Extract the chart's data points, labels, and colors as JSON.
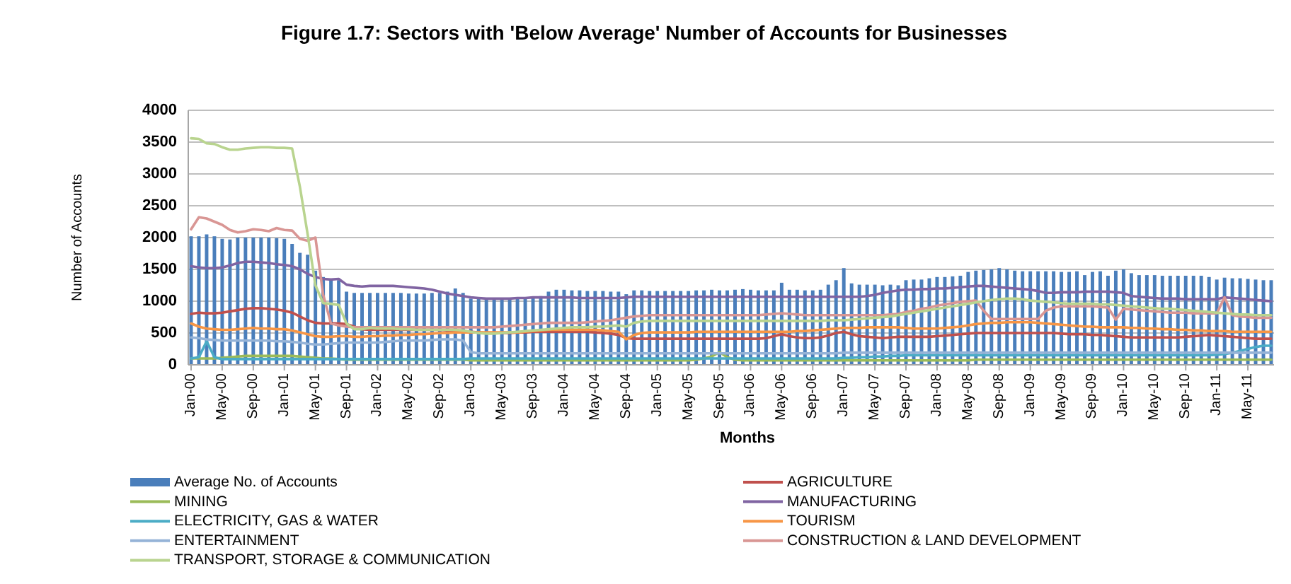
{
  "chart_data": {
    "type": "line",
    "title": "Figure 1.7: Sectors with 'Below Average' Number of Accounts for Businesses",
    "xlabel": "Months",
    "ylabel": "Number of Accounts",
    "categories": [
      "Jan-00",
      null,
      null,
      null,
      "May-00",
      null,
      null,
      null,
      "Sep-00",
      null,
      null,
      null,
      "Jan-01",
      null,
      null,
      null,
      "May-01",
      null,
      null,
      null,
      "Sep-01",
      null,
      null,
      null,
      "Jan-02",
      null,
      null,
      null,
      "May-02",
      null,
      null,
      null,
      "Sep-02",
      null,
      null,
      null,
      "Jan-03",
      null,
      null,
      null,
      "May-03",
      null,
      null,
      null,
      "Sep-03",
      null,
      null,
      null,
      "Jan-04",
      null,
      null,
      null,
      "May-04",
      null,
      null,
      null,
      "Sep-04",
      null,
      null,
      null,
      "Jan-05",
      null,
      null,
      null,
      "May-05",
      null,
      null,
      null,
      "Sep-05",
      null,
      null,
      null,
      "Jan-06",
      null,
      null,
      null,
      "May-06",
      null,
      null,
      null,
      "Sep-06",
      null,
      null,
      null,
      "Jan-07",
      null,
      null,
      null,
      "May-07",
      null,
      null,
      null,
      "Sep-07",
      null,
      null,
      null,
      "Jan-08",
      null,
      null,
      null,
      "May-08",
      null,
      null,
      null,
      "Sep-08",
      null,
      null,
      null,
      "Jan-09",
      null,
      null,
      null,
      "May-09",
      null,
      null,
      null,
      "Sep-09",
      null,
      null,
      null,
      "Jan-10",
      null,
      null,
      null,
      "May-10",
      null,
      null,
      null,
      "Sep-10",
      null,
      null,
      null,
      "Jan-11",
      null,
      null,
      null,
      "May-11",
      null,
      null,
      null
    ],
    "ylim": [
      0,
      4000
    ],
    "yticks": [
      0,
      500,
      1000,
      1500,
      2000,
      2500,
      3000,
      3500,
      4000
    ],
    "grid": "y",
    "legend": "bottom",
    "series": [
      {
        "name": "Average No. of Accounts",
        "type": "bar",
        "color": "#4a7ebb",
        "values": [
          2020,
          2020,
          2050,
          2020,
          1980,
          1970,
          2000,
          2000,
          2000,
          2000,
          2000,
          1990,
          1980,
          1900,
          1760,
          1730,
          1480,
          1380,
          1350,
          1330,
          1150,
          1130,
          1130,
          1130,
          1130,
          1130,
          1130,
          1130,
          1120,
          1120,
          1120,
          1130,
          1130,
          1150,
          1200,
          1130,
          1040,
          1040,
          1040,
          1040,
          1040,
          1040,
          1040,
          1040,
          1060,
          1080,
          1150,
          1180,
          1180,
          1170,
          1170,
          1160,
          1160,
          1160,
          1150,
          1150,
          1110,
          1170,
          1170,
          1160,
          1160,
          1160,
          1160,
          1160,
          1160,
          1170,
          1170,
          1180,
          1170,
          1170,
          1180,
          1190,
          1180,
          1170,
          1170,
          1170,
          1290,
          1180,
          1180,
          1170,
          1170,
          1180,
          1260,
          1330,
          1520,
          1280,
          1260,
          1260,
          1260,
          1250,
          1260,
          1250,
          1330,
          1340,
          1340,
          1360,
          1380,
          1380,
          1390,
          1400,
          1460,
          1480,
          1490,
          1500,
          1520,
          1500,
          1480,
          1470,
          1470,
          1470,
          1470,
          1470,
          1460,
          1460,
          1470,
          1410,
          1460,
          1470,
          1400,
          1480,
          1500,
          1440,
          1410,
          1410,
          1410,
          1400,
          1400,
          1400,
          1400,
          1400,
          1400,
          1380,
          1340,
          1370,
          1360,
          1360,
          1350,
          1340,
          1330,
          1330
        ]
      },
      {
        "name": "AGRICULTURE",
        "color": "#c0504d",
        "values": [
          800,
          820,
          810,
          810,
          820,
          840,
          860,
          880,
          890,
          890,
          880,
          870,
          850,
          820,
          760,
          700,
          660,
          650,
          650,
          650,
          640,
          600,
          560,
          550,
          550,
          550,
          550,
          550,
          550,
          550,
          550,
          550,
          550,
          540,
          540,
          530,
          520,
          510,
          500,
          500,
          500,
          500,
          510,
          510,
          520,
          520,
          520,
          520,
          520,
          520,
          520,
          520,
          510,
          500,
          490,
          470,
          420,
          410,
          410,
          410,
          410,
          410,
          410,
          410,
          410,
          410,
          410,
          410,
          410,
          410,
          410,
          410,
          410,
          410,
          420,
          450,
          480,
          450,
          430,
          420,
          420,
          430,
          460,
          500,
          520,
          480,
          450,
          440,
          430,
          420,
          430,
          440,
          440,
          440,
          440,
          440,
          450,
          460,
          470,
          480,
          490,
          500,
          500,
          500,
          500,
          500,
          500,
          500,
          500,
          500,
          500,
          500,
          490,
          480,
          480,
          480,
          470,
          470,
          460,
          450,
          440,
          430,
          430,
          430,
          430,
          430,
          430,
          430,
          440,
          450,
          460,
          470,
          460,
          450,
          440,
          430,
          420,
          410,
          410,
          410
        ]
      },
      {
        "name": "MINING",
        "color": "#9bbb59",
        "values": [
          100,
          100,
          100,
          100,
          110,
          120,
          130,
          140,
          140,
          140,
          140,
          140,
          140,
          140,
          130,
          120,
          110,
          100,
          100,
          90,
          80,
          80,
          80,
          80,
          80,
          80,
          80,
          80,
          80,
          80,
          80,
          80,
          80,
          80,
          80,
          80,
          70,
          70,
          70,
          70,
          70,
          70,
          70,
          70,
          70,
          70,
          70,
          70,
          70,
          70,
          70,
          70,
          70,
          70,
          70,
          70,
          70,
          70,
          70,
          70,
          70,
          70,
          70,
          70,
          70,
          80,
          100,
          130,
          200,
          120,
          80,
          70,
          70,
          70,
          70,
          70,
          70,
          70,
          70,
          70,
          70,
          70,
          70,
          70,
          70,
          70,
          70,
          70,
          70,
          70,
          70,
          70,
          70,
          70,
          70,
          70,
          70,
          70,
          70,
          70,
          70,
          80,
          80,
          80,
          80,
          80,
          80,
          80,
          80,
          80,
          80,
          80,
          80,
          80,
          80,
          80,
          80,
          80,
          80,
          80,
          80,
          80,
          80,
          80,
          80,
          80,
          80,
          80,
          80,
          80,
          80,
          80,
          80,
          80,
          80,
          80,
          80,
          80,
          80,
          80
        ]
      },
      {
        "name": "MANUFACTURING",
        "color": "#8064a2",
        "values": [
          1550,
          1530,
          1520,
          1520,
          1530,
          1560,
          1600,
          1620,
          1620,
          1610,
          1600,
          1580,
          1570,
          1550,
          1500,
          1430,
          1380,
          1350,
          1340,
          1350,
          1260,
          1240,
          1230,
          1240,
          1240,
          1240,
          1240,
          1230,
          1220,
          1210,
          1200,
          1180,
          1150,
          1120,
          1100,
          1080,
          1060,
          1050,
          1040,
          1040,
          1040,
          1040,
          1050,
          1050,
          1060,
          1060,
          1060,
          1060,
          1060,
          1060,
          1050,
          1050,
          1050,
          1050,
          1050,
          1050,
          1060,
          1070,
          1070,
          1070,
          1070,
          1070,
          1070,
          1070,
          1070,
          1070,
          1070,
          1070,
          1070,
          1070,
          1070,
          1070,
          1070,
          1070,
          1070,
          1070,
          1070,
          1070,
          1070,
          1070,
          1070,
          1070,
          1070,
          1070,
          1070,
          1070,
          1070,
          1080,
          1100,
          1130,
          1150,
          1170,
          1180,
          1180,
          1190,
          1190,
          1200,
          1200,
          1210,
          1220,
          1230,
          1240,
          1240,
          1230,
          1220,
          1210,
          1200,
          1190,
          1180,
          1160,
          1130,
          1130,
          1140,
          1140,
          1140,
          1150,
          1150,
          1150,
          1150,
          1140,
          1130,
          1080,
          1070,
          1060,
          1050,
          1040,
          1040,
          1040,
          1030,
          1030,
          1030,
          1030,
          1030,
          1060,
          1050,
          1040,
          1030,
          1020,
          1010,
          1000
        ]
      },
      {
        "name": "ELECTRICITY, GAS & WATER",
        "color": "#4bacc6",
        "values": [
          100,
          120,
          370,
          120,
          90,
          90,
          90,
          90,
          90,
          90,
          90,
          90,
          90,
          90,
          90,
          90,
          90,
          90,
          90,
          90,
          90,
          90,
          90,
          90,
          90,
          90,
          90,
          90,
          90,
          90,
          90,
          90,
          90,
          90,
          90,
          90,
          100,
          100,
          100,
          100,
          100,
          100,
          100,
          100,
          100,
          100,
          100,
          100,
          100,
          100,
          100,
          100,
          100,
          100,
          100,
          100,
          100,
          100,
          100,
          100,
          100,
          100,
          100,
          100,
          100,
          100,
          100,
          100,
          100,
          100,
          100,
          100,
          100,
          100,
          100,
          100,
          100,
          100,
          100,
          100,
          100,
          100,
          100,
          100,
          110,
          110,
          120,
          120,
          130,
          130,
          140,
          140,
          150,
          150,
          150,
          150,
          150,
          150,
          150,
          150,
          150,
          150,
          150,
          150,
          150,
          150,
          150,
          150,
          150,
          150,
          150,
          150,
          150,
          150,
          150,
          150,
          150,
          150,
          150,
          150,
          150,
          150,
          150,
          150,
          150,
          150,
          150,
          150,
          150,
          150,
          150,
          150,
          160,
          170,
          190,
          220,
          250,
          280,
          300,
          300
        ]
      },
      {
        "name": "TOURISM",
        "color": "#f79646",
        "values": [
          650,
          600,
          570,
          560,
          550,
          550,
          560,
          570,
          580,
          570,
          570,
          560,
          560,
          540,
          510,
          480,
          450,
          440,
          440,
          450,
          450,
          440,
          440,
          450,
          450,
          460,
          460,
          470,
          470,
          480,
          480,
          490,
          500,
          500,
          510,
          510,
          510,
          510,
          510,
          510,
          510,
          510,
          510,
          520,
          530,
          540,
          550,
          550,
          550,
          550,
          550,
          550,
          550,
          540,
          530,
          520,
          400,
          470,
          500,
          510,
          510,
          510,
          510,
          510,
          510,
          520,
          520,
          520,
          520,
          520,
          520,
          520,
          520,
          520,
          520,
          520,
          520,
          520,
          530,
          530,
          540,
          550,
          560,
          570,
          580,
          580,
          580,
          590,
          590,
          590,
          590,
          590,
          580,
          570,
          570,
          570,
          570,
          580,
          590,
          600,
          620,
          640,
          650,
          660,
          660,
          670,
          670,
          670,
          670,
          660,
          650,
          640,
          630,
          620,
          610,
          600,
          600,
          590,
          590,
          590,
          590,
          580,
          580,
          570,
          570,
          560,
          560,
          550,
          550,
          540,
          540,
          530,
          530,
          530,
          520,
          520,
          520,
          520,
          520,
          520
        ]
      },
      {
        "name": "ENTERTAINMENT",
        "color": "#95b3d7",
        "values": [
          430,
          420,
          400,
          390,
          380,
          380,
          380,
          380,
          380,
          380,
          380,
          370,
          370,
          360,
          350,
          330,
          320,
          320,
          330,
          340,
          350,
          350,
          350,
          350,
          350,
          360,
          370,
          380,
          380,
          380,
          380,
          390,
          400,
          400,
          400,
          380,
          200,
          180,
          180,
          180,
          180,
          180,
          180,
          180,
          180,
          180,
          180,
          180,
          180,
          180,
          180,
          180,
          180,
          180,
          180,
          180,
          180,
          180,
          180,
          180,
          180,
          180,
          180,
          180,
          180,
          180,
          180,
          180,
          180,
          180,
          180,
          180,
          180,
          180,
          180,
          180,
          180,
          180,
          180,
          180,
          180,
          180,
          180,
          180,
          190,
          190,
          190,
          190,
          190,
          190,
          190,
          190,
          190,
          190,
          190,
          190,
          190,
          190,
          190,
          190,
          190,
          190,
          190,
          190,
          190,
          190,
          190,
          190,
          190,
          190,
          190,
          190,
          190,
          190,
          190,
          190,
          190,
          190,
          190,
          190,
          190,
          190,
          190,
          190,
          190,
          190,
          190,
          190,
          190,
          190,
          190,
          190,
          190,
          190,
          190,
          190,
          190,
          190,
          190,
          190
        ]
      },
      {
        "name": "CONSTRUCTION & LAND DEVELOPMENT",
        "color": "#d99694",
        "values": [
          2130,
          2320,
          2300,
          2250,
          2200,
          2120,
          2080,
          2100,
          2130,
          2120,
          2100,
          2150,
          2120,
          2110,
          1980,
          1950,
          2000,
          1100,
          650,
          620,
          600,
          590,
          590,
          590,
          590,
          590,
          590,
          590,
          590,
          590,
          590,
          590,
          590,
          590,
          590,
          590,
          590,
          590,
          590,
          590,
          600,
          610,
          620,
          630,
          640,
          650,
          660,
          660,
          660,
          660,
          660,
          670,
          680,
          690,
          700,
          720,
          740,
          760,
          770,
          780,
          780,
          780,
          780,
          780,
          780,
          780,
          780,
          780,
          780,
          780,
          780,
          780,
          780,
          780,
          790,
          800,
          810,
          800,
          790,
          780,
          780,
          780,
          780,
          780,
          780,
          780,
          780,
          780,
          780,
          780,
          790,
          800,
          830,
          850,
          880,
          900,
          930,
          950,
          970,
          990,
          1000,
          1010,
          850,
          720,
          720,
          720,
          720,
          720,
          720,
          720,
          850,
          900,
          920,
          920,
          920,
          920,
          920,
          910,
          900,
          710,
          880,
          870,
          860,
          850,
          840,
          830,
          820,
          820,
          820,
          810,
          810,
          810,
          810,
          1060,
          780,
          760,
          750,
          740,
          740,
          740
        ]
      },
      {
        "name": "TRANSPORT, STORAGE & COMMUNICATION",
        "color": "#b9d48f",
        "values": [
          3560,
          3550,
          3480,
          3470,
          3420,
          3380,
          3380,
          3400,
          3410,
          3420,
          3420,
          3410,
          3410,
          3400,
          2800,
          2050,
          1250,
          970,
          960,
          940,
          650,
          560,
          560,
          580,
          570,
          570,
          570,
          560,
          560,
          550,
          550,
          550,
          550,
          550,
          550,
          540,
          520,
          500,
          490,
          490,
          500,
          510,
          520,
          530,
          540,
          550,
          560,
          570,
          580,
          590,
          590,
          590,
          600,
          600,
          610,
          620,
          600,
          660,
          680,
          690,
          690,
          690,
          690,
          690,
          690,
          690,
          690,
          690,
          690,
          690,
          690,
          690,
          690,
          690,
          690,
          690,
          690,
          690,
          690,
          690,
          690,
          690,
          700,
          700,
          700,
          710,
          720,
          730,
          740,
          750,
          760,
          780,
          800,
          820,
          840,
          860,
          880,
          900,
          920,
          940,
          960,
          980,
          1000,
          1020,
          1030,
          1040,
          1040,
          1030,
          1010,
          1000,
          990,
          980,
          970,
          960,
          960,
          960,
          960,
          950,
          950,
          940,
          930,
          920,
          910,
          900,
          890,
          880,
          880,
          870,
          860,
          850,
          840,
          830,
          820,
          810,
          800,
          790,
          790,
          780,
          780,
          780
        ]
      }
    ]
  }
}
